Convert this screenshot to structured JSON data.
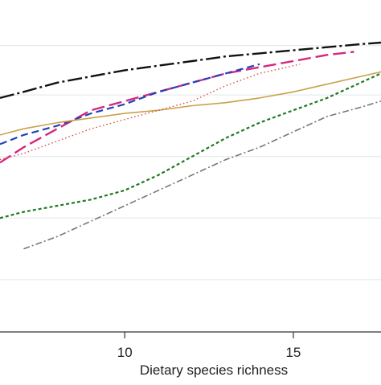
{
  "chart_data": {
    "type": "line",
    "xlabel": "Dietary species richness",
    "ylabel": "",
    "title": "",
    "xlim": [
      6.3,
      17.6
    ],
    "ylim": [
      0,
      100
    ],
    "x_ticks": [
      10,
      15
    ],
    "y_grid": [
      17,
      37,
      57,
      77,
      93
    ],
    "grid": true,
    "legend": "none",
    "series": [
      {
        "color": "#111111",
        "dash": "18 4 3 4",
        "width": 2.4,
        "points": [
          [
            6.3,
            76
          ],
          [
            7,
            78
          ],
          [
            8,
            81
          ],
          [
            9,
            83
          ],
          [
            10,
            85
          ],
          [
            11,
            86.5
          ],
          [
            12,
            88
          ],
          [
            13,
            89.5
          ],
          [
            14,
            90.5
          ],
          [
            15,
            91.5
          ],
          [
            16,
            92.5
          ],
          [
            17,
            93.5
          ],
          [
            17.6,
            94
          ]
        ]
      },
      {
        "color": "#d6287e",
        "dash": "16 6",
        "width": 2.4,
        "points": [
          [
            6.3,
            55
          ],
          [
            7,
            60
          ],
          [
            8,
            66
          ],
          [
            9,
            72
          ],
          [
            10,
            75
          ],
          [
            11,
            78
          ],
          [
            12,
            81
          ],
          [
            13,
            84
          ],
          [
            14,
            86
          ],
          [
            15,
            88
          ],
          [
            16,
            90
          ],
          [
            16.8,
            91
          ]
        ]
      },
      {
        "color": "#2540b8",
        "dash": "9 5",
        "width": 2.2,
        "points": [
          [
            6.3,
            61
          ],
          [
            7,
            64
          ],
          [
            8,
            67
          ],
          [
            9,
            71
          ],
          [
            10,
            74
          ],
          [
            11,
            78
          ],
          [
            12,
            81
          ],
          [
            13,
            84
          ],
          [
            14,
            87
          ]
        ]
      },
      {
        "color": "#c9a24a",
        "dash": "",
        "width": 1.6,
        "points": [
          [
            6.3,
            64
          ],
          [
            7,
            66
          ],
          [
            8,
            68
          ],
          [
            9,
            69.5
          ],
          [
            10,
            71
          ],
          [
            11,
            72
          ],
          [
            12,
            73.5
          ],
          [
            13,
            74.5
          ],
          [
            14,
            76
          ],
          [
            15,
            78
          ],
          [
            16,
            80.5
          ],
          [
            17,
            83
          ],
          [
            17.6,
            84.5
          ]
        ]
      },
      {
        "color": "#d64a4a",
        "dash": "1.5 3",
        "width": 1.4,
        "points": [
          [
            6.3,
            56
          ],
          [
            7,
            58
          ],
          [
            8,
            62
          ],
          [
            9,
            66
          ],
          [
            10,
            69
          ],
          [
            11,
            72
          ],
          [
            12,
            75
          ],
          [
            13,
            80
          ],
          [
            14,
            84
          ],
          [
            15,
            86.5
          ],
          [
            15.2,
            87
          ]
        ]
      },
      {
        "color": "#1f7a1f",
        "dash": "4 3",
        "width": 2.2,
        "points": [
          [
            6.3,
            37
          ],
          [
            7,
            39
          ],
          [
            8,
            41
          ],
          [
            9,
            43
          ],
          [
            10,
            46
          ],
          [
            11,
            51
          ],
          [
            12,
            57
          ],
          [
            13,
            63
          ],
          [
            14,
            68
          ],
          [
            15,
            72
          ],
          [
            16,
            76
          ],
          [
            17,
            81
          ],
          [
            17.6,
            84
          ]
        ]
      },
      {
        "color": "#777777",
        "dash": "8 3 2 3",
        "width": 1.6,
        "points": [
          [
            7,
            27
          ],
          [
            8,
            31
          ],
          [
            9,
            36
          ],
          [
            10,
            41
          ],
          [
            11,
            46
          ],
          [
            12,
            51
          ],
          [
            13,
            56
          ],
          [
            14,
            60
          ],
          [
            15,
            65
          ],
          [
            16,
            70
          ],
          [
            17,
            73
          ],
          [
            17.6,
            75
          ]
        ]
      }
    ]
  }
}
